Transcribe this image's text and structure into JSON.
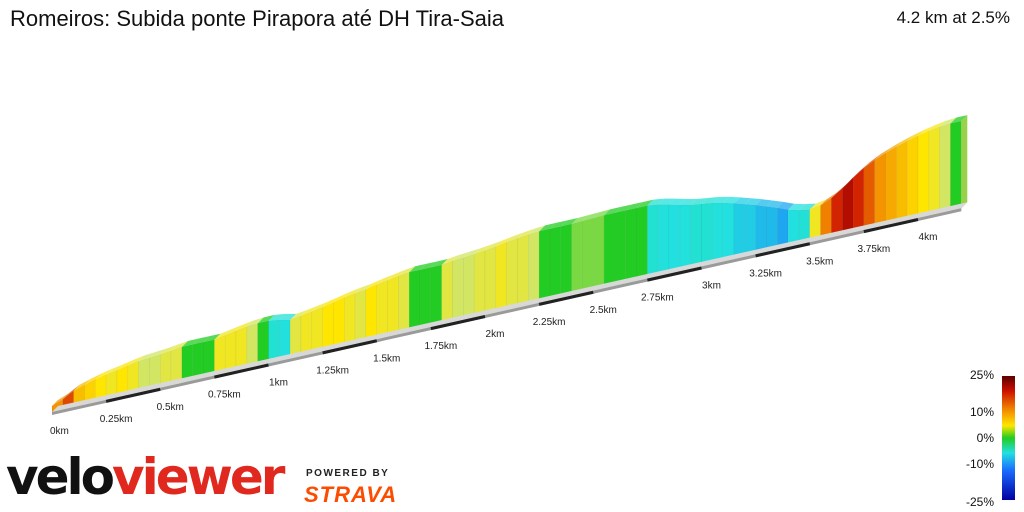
{
  "header": {
    "title": "Romeiros: Subida ponte Pirapora até DH Tira-Saia",
    "summary": "4.2 km at 2.5%"
  },
  "legend": {
    "labels": [
      "25%",
      "10%",
      "0%",
      "-10%",
      "-25%"
    ]
  },
  "branding": {
    "logo_part1": "velo",
    "logo_part2": "viewer",
    "powered_by": "POWERED BY",
    "strava": "STRAVA"
  },
  "chart_data": {
    "type": "area",
    "title": "Romeiros: Subida ponte Pirapora até DH Tira-Saia",
    "xlabel": "",
    "ylabel": "",
    "x_unit": "km",
    "tick_labels": [
      "0km",
      "0.25km",
      "0.5km",
      "0.75km",
      "1km",
      "1.25km",
      "1.5km",
      "1.75km",
      "2km",
      "2.25km",
      "2.5km",
      "2.75km",
      "3km",
      "3.25km",
      "3.5km",
      "3.75km",
      "4km"
    ],
    "distance_km": [
      0,
      0.05,
      0.1,
      0.15,
      0.2,
      0.25,
      0.3,
      0.35,
      0.4,
      0.45,
      0.5,
      0.55,
      0.6,
      0.65,
      0.7,
      0.75,
      0.8,
      0.85,
      0.9,
      0.95,
      1.0,
      1.05,
      1.1,
      1.15,
      1.2,
      1.25,
      1.3,
      1.35,
      1.4,
      1.45,
      1.5,
      1.55,
      1.6,
      1.65,
      1.7,
      1.75,
      1.8,
      1.85,
      1.9,
      1.95,
      2.0,
      2.05,
      2.1,
      2.15,
      2.2,
      2.25,
      2.3,
      2.35,
      2.4,
      2.45,
      2.5,
      2.55,
      2.6,
      2.65,
      2.7,
      2.75,
      2.8,
      2.85,
      2.9,
      2.95,
      3.0,
      3.05,
      3.1,
      3.15,
      3.2,
      3.25,
      3.3,
      3.35,
      3.4,
      3.45,
      3.5,
      3.55,
      3.6,
      3.65,
      3.7,
      3.75,
      3.8,
      3.85,
      3.9,
      3.95,
      4.0,
      4.05,
      4.1,
      4.15,
      4.2
    ],
    "gradient_pct": [
      9,
      13,
      7,
      6,
      5,
      4,
      5,
      4,
      2,
      2,
      3,
      3,
      0,
      0,
      0,
      4,
      4,
      4,
      2,
      0,
      -3,
      -5,
      3,
      4,
      4,
      5,
      5,
      4,
      3,
      5,
      4,
      4,
      3,
      0,
      0,
      0,
      3,
      2,
      2,
      3,
      3,
      4,
      3,
      3,
      2,
      0,
      0,
      0,
      1,
      1,
      1,
      0,
      0,
      0,
      0,
      -3,
      -5,
      -6,
      -5,
      -3,
      -3,
      -5,
      -6,
      -7,
      -7,
      -8,
      -8,
      -9,
      -6,
      -4,
      4,
      10,
      15,
      18,
      15,
      12,
      9,
      8,
      7,
      6,
      5,
      4,
      2,
      0
    ],
    "ylim": [
      -25,
      25
    ]
  }
}
